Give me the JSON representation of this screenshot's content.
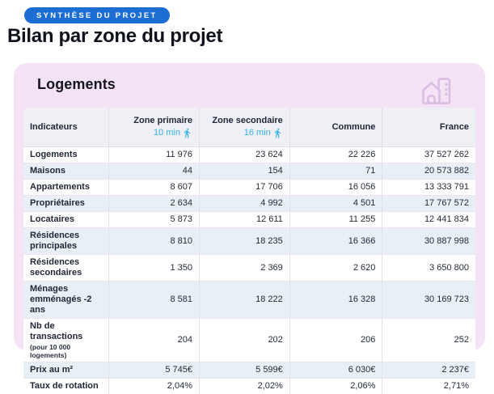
{
  "badge": {
    "label": "SYNTHÈSE DU PROJET"
  },
  "page_title": "Bilan par zone du projet",
  "panel": {
    "title": "Logements"
  },
  "colors": {
    "badge_blue": "#1d6ed2",
    "panel_pink": "#f4e3f5",
    "alt_row_blue": "#e9eff7",
    "header_grey": "#eef0f5",
    "accent_cyan": "#35b2e5",
    "icon_purple": "#d9bde2"
  },
  "table": {
    "columns": [
      {
        "label": "Indicateurs"
      },
      {
        "label": "Zone primaire",
        "sub": "10 min",
        "icon": "walking-person-icon"
      },
      {
        "label": "Zone secondaire",
        "sub": "16 min",
        "icon": "walking-person-icon"
      },
      {
        "label": "Commune"
      },
      {
        "label": "France"
      }
    ],
    "rows": [
      {
        "label": "Logements",
        "values": [
          "11 976",
          "23 624",
          "22 226",
          "37 527 262"
        ]
      },
      {
        "label": "Maisons",
        "values": [
          "44",
          "154",
          "71",
          "20 573 882"
        ]
      },
      {
        "label": "Appartements",
        "values": [
          "8 607",
          "17 706",
          "16 056",
          "13 333 791"
        ]
      },
      {
        "label": "Propriétaires",
        "values": [
          "2 634",
          "4 992",
          "4 501",
          "17 767 572"
        ]
      },
      {
        "label": "Locataires",
        "values": [
          "5 873",
          "12 611",
          "11 255",
          "12 441 834"
        ]
      },
      {
        "label": "Résidences principales",
        "values": [
          "8 810",
          "18 235",
          "16 366",
          "30 887 998"
        ]
      },
      {
        "label": "Résidences secondaires",
        "values": [
          "1 350",
          "2 369",
          "2 620",
          "3 650 800"
        ]
      },
      {
        "label": "Ménages emménagés -2 ans",
        "values": [
          "8 581",
          "18 222",
          "16 328",
          "30 169 723"
        ]
      },
      {
        "label": "Nb de transactions",
        "sublabel": "(pour 10 000 logements)",
        "values": [
          "204",
          "202",
          "206",
          "252"
        ]
      },
      {
        "label": "Prix au m²",
        "values": [
          "5 745€",
          "5 599€",
          "6 030€",
          "2 237€"
        ]
      },
      {
        "label": "Taux de rotation",
        "values": [
          "2,04%",
          "2,02%",
          "2,06%",
          "2,71%"
        ]
      }
    ]
  }
}
